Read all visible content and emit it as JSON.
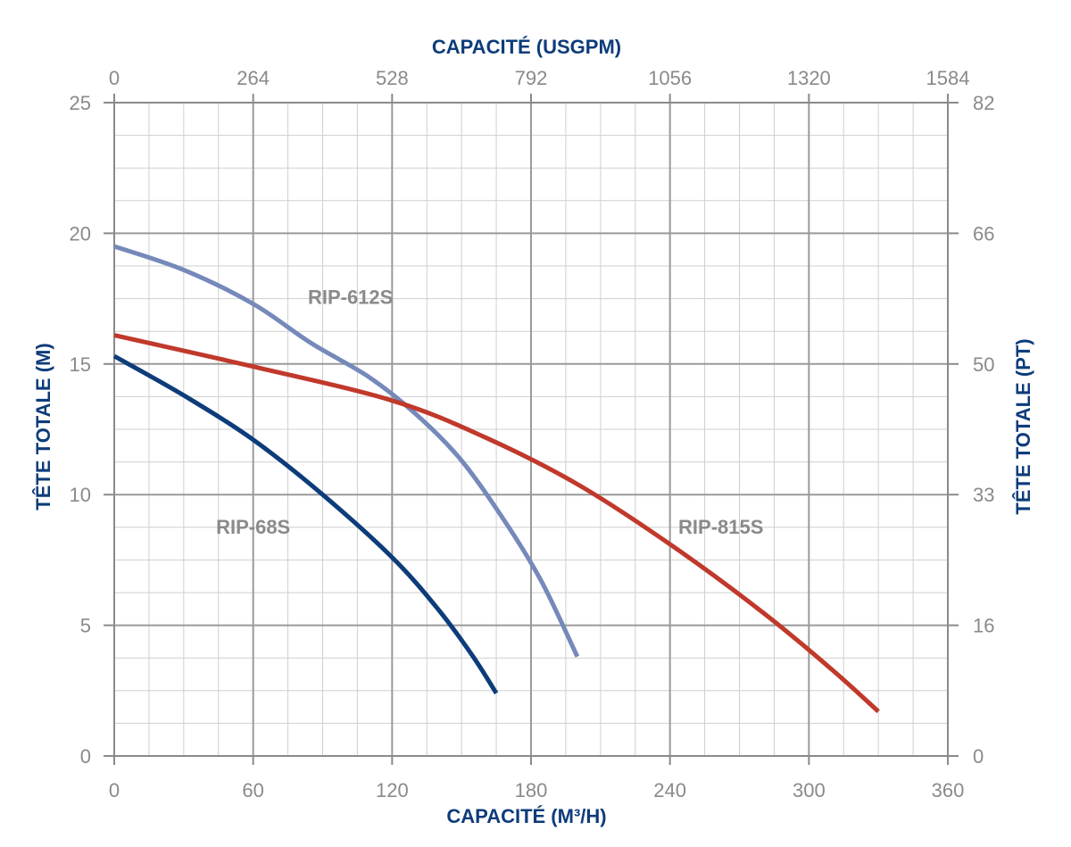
{
  "chart_data": {
    "type": "line",
    "x_bottom": {
      "label": "CAPACITÉ (M³/H)",
      "ticks": [
        0,
        60,
        120,
        180,
        240,
        300,
        360
      ],
      "range": [
        0,
        360
      ]
    },
    "x_top": {
      "label": "CAPACITÉ (USGPM)",
      "ticks": [
        "0",
        "264",
        "528",
        "792",
        "1056",
        "1320",
        "1584"
      ]
    },
    "y_left": {
      "label": "TÊTE TOTALE (M)",
      "ticks": [
        0,
        5,
        10,
        15,
        20,
        25
      ],
      "range": [
        0,
        25
      ]
    },
    "y_right": {
      "label": "TÊTE TOTALE (PT)",
      "ticks": [
        "0",
        "16",
        "33",
        "50",
        "66",
        "82"
      ]
    },
    "grid": true,
    "series": [
      {
        "name": "RIP-68S",
        "color": "#0d3c7a",
        "points": [
          [
            0,
            15.3
          ],
          [
            30,
            13.8
          ],
          [
            60,
            12.1
          ],
          [
            90,
            10.0
          ],
          [
            120,
            7.6
          ],
          [
            140,
            5.6
          ],
          [
            155,
            3.8
          ],
          [
            165,
            2.4
          ]
        ]
      },
      {
        "name": "RIP-612S",
        "color": "#7589ba",
        "points": [
          [
            0,
            19.5
          ],
          [
            30,
            18.6
          ],
          [
            60,
            17.3
          ],
          [
            85,
            15.8
          ],
          [
            110,
            14.5
          ],
          [
            130,
            13.1
          ],
          [
            150,
            11.3
          ],
          [
            170,
            8.8
          ],
          [
            185,
            6.6
          ],
          [
            200,
            3.8
          ]
        ]
      },
      {
        "name": "RIP-815S",
        "color": "#c0392b",
        "points": [
          [
            0,
            16.1
          ],
          [
            60,
            14.9
          ],
          [
            120,
            13.6
          ],
          [
            160,
            12.2
          ],
          [
            200,
            10.4
          ],
          [
            240,
            8.1
          ],
          [
            280,
            5.5
          ],
          [
            310,
            3.3
          ],
          [
            330,
            1.7
          ]
        ]
      }
    ],
    "annotations": [
      {
        "text": "RIP-612S",
        "x": 102,
        "y": 17.3
      },
      {
        "text": "RIP-68S",
        "x": 60,
        "y": 8.5
      },
      {
        "text": "RIP-815S",
        "x": 262,
        "y": 8.5
      }
    ]
  }
}
